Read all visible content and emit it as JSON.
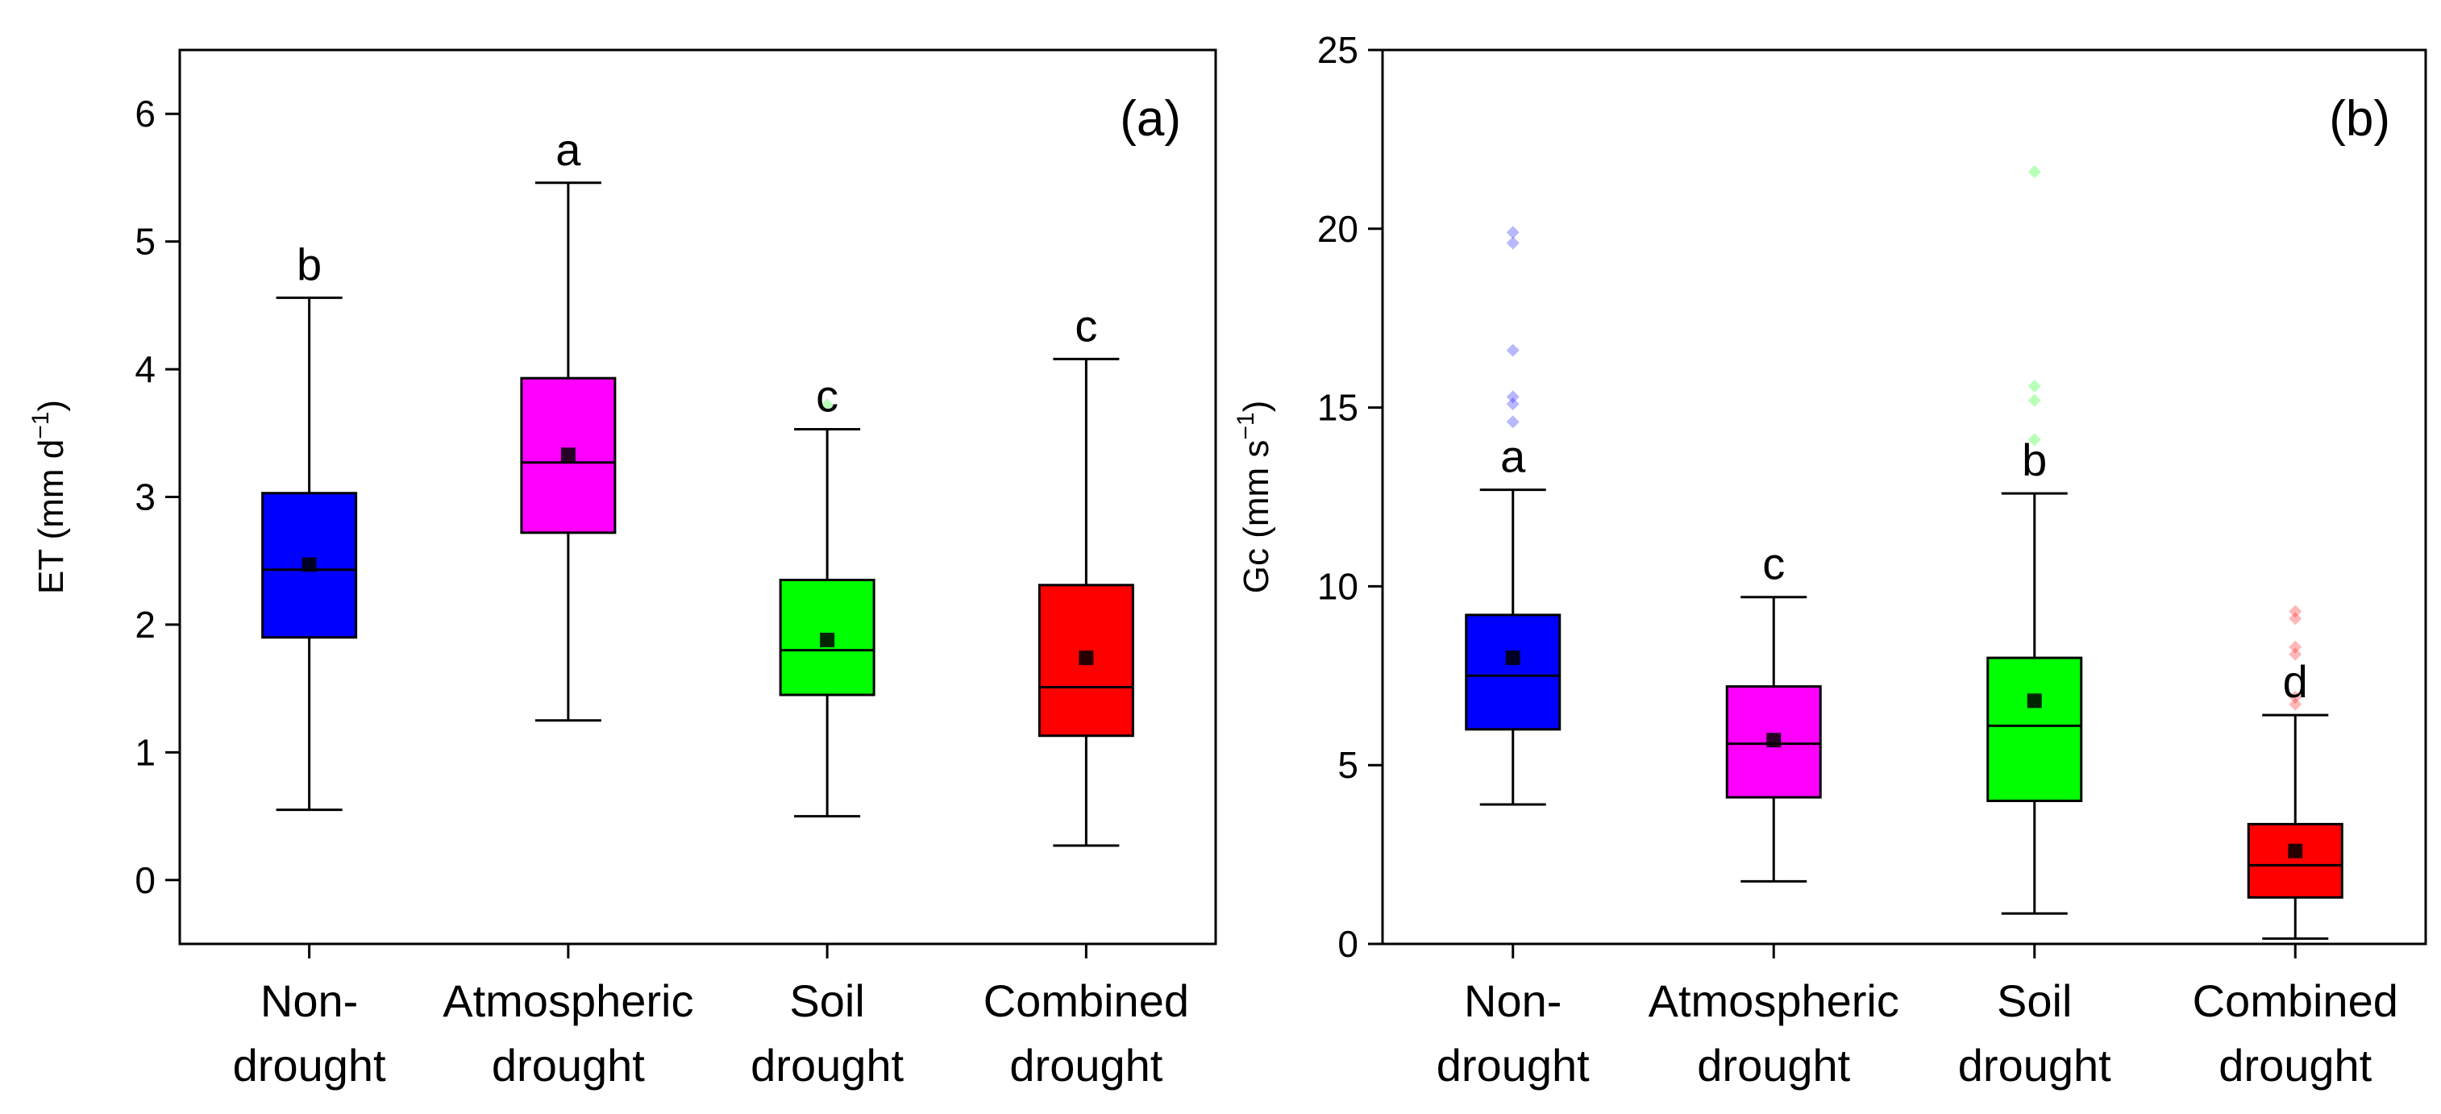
{
  "chart_data": [
    {
      "type": "box",
      "panel_label": "(a)",
      "ylabel": {
        "base": "ET (mm d",
        "sup": "−1",
        "tail": ")"
      },
      "ylim": [
        -0.5,
        6.5
      ],
      "yticks": [
        0,
        1,
        2,
        3,
        4,
        5,
        6
      ],
      "grid": false,
      "categories": [
        {
          "lines": [
            "Non-",
            "drought"
          ]
        },
        {
          "lines": [
            "Atmospheric",
            "drought"
          ]
        },
        {
          "lines": [
            "Soil",
            "drought"
          ]
        },
        {
          "lines": [
            "Combined",
            "drought"
          ]
        }
      ],
      "boxes": [
        {
          "whisker_low": 0.55,
          "q1": 1.9,
          "median": 2.43,
          "q3": 3.03,
          "whisker_high": 4.56,
          "mean": 2.47,
          "sig": "b",
          "color": "#0000ff",
          "outliers": []
        },
        {
          "whisker_low": 1.25,
          "q1": 2.72,
          "median": 3.27,
          "q3": 3.93,
          "whisker_high": 5.46,
          "mean": 3.33,
          "sig": "a",
          "color": "#ff00ff",
          "outliers": []
        },
        {
          "whisker_low": 0.5,
          "q1": 1.45,
          "median": 1.8,
          "q3": 2.35,
          "whisker_high": 3.53,
          "mean": 1.88,
          "sig": "c",
          "color": "#00ff00",
          "outliers": [
            3.72
          ]
        },
        {
          "whisker_low": 0.27,
          "q1": 1.13,
          "median": 1.51,
          "q3": 2.31,
          "whisker_high": 4.08,
          "mean": 1.74,
          "sig": "c",
          "color": "#ff0000",
          "outliers": []
        }
      ]
    },
    {
      "type": "box",
      "panel_label": "(b)",
      "ylabel": {
        "base": "Gc (mm s",
        "sup": "−1",
        "tail": ")"
      },
      "ylim": [
        0,
        25
      ],
      "yticks": [
        0,
        5,
        10,
        15,
        20,
        25
      ],
      "grid": false,
      "categories": [
        {
          "lines": [
            "Non-",
            "drought"
          ]
        },
        {
          "lines": [
            "Atmospheric",
            "drought"
          ]
        },
        {
          "lines": [
            "Soil",
            "drought"
          ]
        },
        {
          "lines": [
            "Combined",
            "drought"
          ]
        }
      ],
      "boxes": [
        {
          "whisker_low": 3.9,
          "q1": 6.0,
          "median": 7.5,
          "q3": 9.2,
          "whisker_high": 12.7,
          "mean": 8.0,
          "sig": "a",
          "color": "#0000ff",
          "outliers": [
            14.6,
            15.1,
            15.3,
            16.6,
            19.6,
            19.9
          ]
        },
        {
          "whisker_low": 1.75,
          "q1": 4.1,
          "median": 5.6,
          "q3": 7.2,
          "whisker_high": 9.7,
          "mean": 5.7,
          "sig": "c",
          "color": "#ff00ff",
          "outliers": []
        },
        {
          "whisker_low": 0.85,
          "q1": 4.0,
          "median": 6.1,
          "q3": 8.0,
          "whisker_high": 12.6,
          "mean": 6.8,
          "sig": "b",
          "color": "#00ff00",
          "outliers": [
            14.1,
            15.2,
            15.6,
            21.6
          ]
        },
        {
          "whisker_low": 0.15,
          "q1": 1.3,
          "median": 2.2,
          "q3": 3.35,
          "whisker_high": 6.4,
          "mean": 2.6,
          "sig": "d",
          "color": "#ff0000",
          "outliers": [
            6.7,
            6.9,
            8.1,
            8.3,
            9.1,
            9.3
          ]
        }
      ]
    }
  ]
}
